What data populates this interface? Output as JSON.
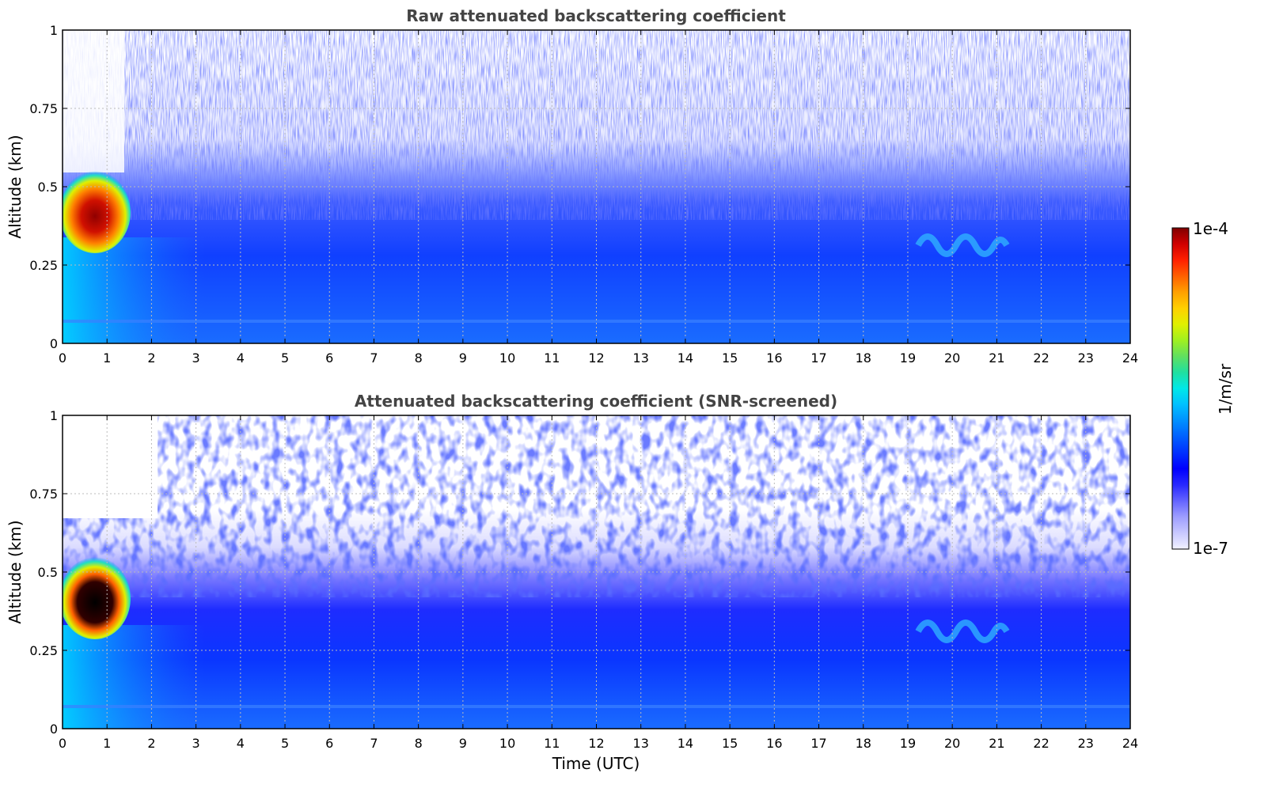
{
  "chart_data": [
    {
      "type": "heatmap",
      "title": "Raw attenuated backscattering coefficient",
      "xlabel": "",
      "ylabel": "Altitude (km)",
      "xlim": [
        0,
        24
      ],
      "ylim": [
        0,
        1
      ],
      "xticks": [
        "0",
        "1",
        "2",
        "3",
        "4",
        "5",
        "6",
        "7",
        "8",
        "9",
        "10",
        "11",
        "12",
        "13",
        "14",
        "15",
        "16",
        "17",
        "18",
        "19",
        "20",
        "21",
        "22",
        "23",
        "24"
      ],
      "yticks": [
        "0",
        "0.25",
        "0.5",
        "0.75",
        "1"
      ],
      "grid": true,
      "features": [
        {
          "t_start": 0.0,
          "t_end": 1.4,
          "alt_bottom": 0.3,
          "alt_top": 0.52,
          "level": "high (1e-5 to 1e-4)"
        },
        {
          "t_start": 19.2,
          "t_end": 21.2,
          "alt_bottom": 0.28,
          "alt_top": 0.37,
          "level": "elevated"
        }
      ]
    },
    {
      "type": "heatmap",
      "title": "Attenuated backscattering coefficient (SNR-screened)",
      "xlabel": "Time (UTC)",
      "ylabel": "Altitude (km)",
      "xlim": [
        0,
        24
      ],
      "ylim": [
        0,
        1
      ],
      "xticks": [
        "0",
        "1",
        "2",
        "3",
        "4",
        "5",
        "6",
        "7",
        "8",
        "9",
        "10",
        "11",
        "12",
        "13",
        "14",
        "15",
        "16",
        "17",
        "18",
        "19",
        "20",
        "21",
        "22",
        "23",
        "24"
      ],
      "yticks": [
        "0",
        "0.25",
        "0.5",
        "0.75",
        "1"
      ],
      "grid": true
    }
  ],
  "colorbar": {
    "max_label": "1e-4",
    "min_label": "1e-7",
    "unit_label": "1/m/sr",
    "colors": [
      "#f2f2ff",
      "#c8c8ff",
      "#9e9eff",
      "#6464ff",
      "#2828ff",
      "#0000ff",
      "#0030ff",
      "#0060ff",
      "#0090ff",
      "#00c0ff",
      "#00e8e8",
      "#20e0a0",
      "#60e060",
      "#a0f020",
      "#e0f000",
      "#ffd000",
      "#ffa000",
      "#ff6000",
      "#ff2000",
      "#d00000",
      "#800000"
    ]
  }
}
